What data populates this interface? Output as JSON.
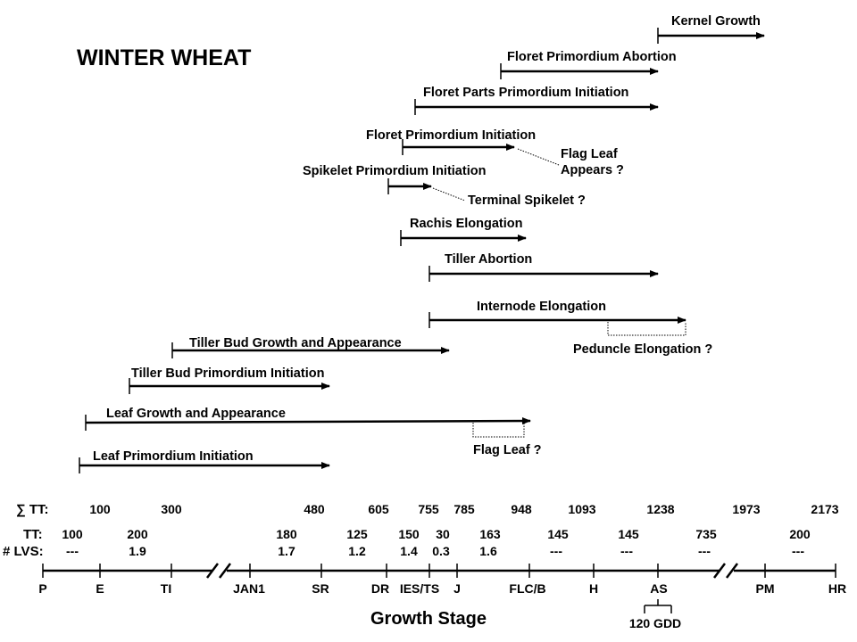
{
  "title": "WINTER WHEAT",
  "axis_title": "Growth Stage",
  "row_headers": {
    "sum_tt": "∑ TT:",
    "tt": "TT:",
    "lvs": "# LVS:"
  },
  "stages": [
    {
      "code": "P",
      "cum": "",
      "tt": "100",
      "lvs": "---"
    },
    {
      "code": "E",
      "cum": "100",
      "tt": "200",
      "lvs": "1.9"
    },
    {
      "code": "TI",
      "cum": "300",
      "tt": "",
      "lvs": ""
    },
    {
      "code": "JAN1",
      "cum": "",
      "tt": "180",
      "lvs": "1.7"
    },
    {
      "code": "SR",
      "cum": "480",
      "tt": "125",
      "lvs": "1.2"
    },
    {
      "code": "DR",
      "cum": "605",
      "tt": "150",
      "lvs": "1.4"
    },
    {
      "code": "IES/TS",
      "cum": "755",
      "tt": "30",
      "lvs": "0.3"
    },
    {
      "code": "J",
      "cum": "785",
      "tt": "163",
      "lvs": "1.6"
    },
    {
      "code": "FLC/B",
      "cum": "948",
      "tt": "145",
      "lvs": "---"
    },
    {
      "code": "H",
      "cum": "1093",
      "tt": "145",
      "lvs": "---"
    },
    {
      "code": "AS",
      "cum": "1238",
      "tt": "735",
      "lvs": "---"
    },
    {
      "code": "PM",
      "cum": "1973",
      "tt": "200",
      "lvs": "---"
    },
    {
      "code": "HR",
      "cum": "2173",
      "tt": "",
      "lvs": ""
    }
  ],
  "gdd_note": "120 GDD",
  "processes": [
    {
      "label": "Kernel Growth"
    },
    {
      "label": "Floret Primordium Abortion"
    },
    {
      "label": "Floret Parts Primordium Initiation"
    },
    {
      "label": "Floret Primordium Initiation"
    },
    {
      "label": "Spikelet Primordium Initiation"
    },
    {
      "label": "Rachis Elongation"
    },
    {
      "label": "Tiller Abortion"
    },
    {
      "label": "Internode Elongation"
    },
    {
      "label": "Tiller Bud Growth and Appearance"
    },
    {
      "label": "Tiller Bud Primordium Initiation"
    },
    {
      "label": "Leaf Growth and Appearance"
    },
    {
      "label": "Leaf Primordium Initiation"
    }
  ],
  "annotations": {
    "flag_leaf_appears_1": "Flag Leaf",
    "flag_leaf_appears_2": "Appears ?",
    "terminal_spikelet": "Terminal Spikelet ?",
    "peduncle": "Peduncle Elongation ?",
    "flag_leaf": "Flag Leaf ?"
  }
}
